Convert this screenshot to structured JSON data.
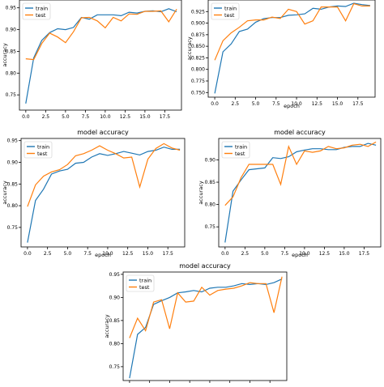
{
  "colors": {
    "train": "#1f77b4",
    "test": "#ff7f0e",
    "axis": "#000000",
    "background": "#ffffff"
  },
  "chart_data": [
    {
      "type": "line",
      "title": "",
      "xlabel": "",
      "ylabel": "accuracy",
      "xlim": [
        -0.8,
        19.6
      ],
      "ylim": [
        0.715,
        0.968
      ],
      "xticks": [
        0.0,
        2.5,
        5.0,
        7.5,
        10.0,
        12.5,
        15.0,
        17.5
      ],
      "xtick_labels": [
        "0.0",
        "2.5",
        "5.0",
        "7.5",
        "10.0",
        "12.5",
        "15.0",
        "17.5"
      ],
      "yticks": [
        0.75,
        0.8,
        0.85,
        0.9,
        0.95
      ],
      "ytick_labels": [
        "0.75",
        "0.80",
        "0.85",
        "0.90",
        "0.95"
      ],
      "legend": "top-left",
      "x": [
        0,
        1,
        2,
        3,
        4,
        5,
        6,
        7,
        8,
        9,
        10,
        11,
        12,
        13,
        14,
        15,
        16,
        17,
        18,
        19
      ],
      "series": [
        {
          "name": "train",
          "color": "#1f77b4",
          "values": [
            0.73,
            0.835,
            0.875,
            0.893,
            0.902,
            0.9,
            0.905,
            0.928,
            0.924,
            0.934,
            0.934,
            0.934,
            0.932,
            0.94,
            0.938,
            0.942,
            0.943,
            0.941,
            0.948,
            0.941
          ]
        },
        {
          "name": "test",
          "color": "#ff7f0e",
          "values": [
            0.833,
            0.831,
            0.868,
            0.892,
            0.883,
            0.87,
            0.895,
            0.927,
            0.928,
            0.92,
            0.904,
            0.928,
            0.92,
            0.936,
            0.935,
            0.942,
            0.942,
            0.943,
            0.918,
            0.947
          ]
        }
      ]
    },
    {
      "type": "line",
      "title": "",
      "xlabel": "epoch",
      "ylabel": "accuracy",
      "xlim": [
        -0.8,
        19.6
      ],
      "ylim": [
        0.74,
        0.95
      ],
      "xticks": [
        0.0,
        2.5,
        5.0,
        7.5,
        10.0,
        12.5,
        15.0,
        17.5
      ],
      "xtick_labels": [
        "0.0",
        "2.5",
        "5.0",
        "7.5",
        "10.0",
        "12.5",
        "15.0",
        "17.5"
      ],
      "yticks": [
        0.75,
        0.775,
        0.8,
        0.825,
        0.85,
        0.875,
        0.9,
        0.925
      ],
      "ytick_labels": [
        "0.750",
        "0.775",
        "0.800",
        "0.825",
        "0.850",
        "0.875",
        "0.900",
        "0.925"
      ],
      "legend": "top-left",
      "x": [
        0,
        1,
        2,
        3,
        4,
        5,
        6,
        7,
        8,
        9,
        10,
        11,
        12,
        13,
        14,
        15,
        16,
        17,
        18,
        19
      ],
      "series": [
        {
          "name": "train",
          "color": "#1f77b4",
          "values": [
            0.748,
            0.838,
            0.855,
            0.882,
            0.887,
            0.902,
            0.91,
            0.912,
            0.912,
            0.917,
            0.918,
            0.92,
            0.932,
            0.93,
            0.935,
            0.937,
            0.936,
            0.943,
            0.94,
            0.938
          ]
        },
        {
          "name": "test",
          "color": "#ff7f0e",
          "values": [
            0.82,
            0.862,
            0.879,
            0.891,
            0.905,
            0.907,
            0.907,
            0.913,
            0.91,
            0.93,
            0.925,
            0.898,
            0.905,
            0.935,
            0.935,
            0.935,
            0.905,
            0.942,
            0.937,
            0.937
          ]
        }
      ]
    },
    {
      "type": "line",
      "title": "model accuracy",
      "xlabel": "epoch",
      "ylabel": "accuracy",
      "xlim": [
        -0.8,
        19.6
      ],
      "ylim": [
        0.705,
        0.955
      ],
      "xticks": [
        0.0,
        2.5,
        5.0,
        7.5,
        10.0,
        12.5,
        15.0,
        17.5
      ],
      "xtick_labels": [
        "0.0",
        "2.5",
        "5.0",
        "7.5",
        "10.0",
        "12.5",
        "15.0",
        "17.5"
      ],
      "yticks": [
        0.75,
        0.8,
        0.85,
        0.9,
        0.95
      ],
      "ytick_labels": [
        "0.75",
        "0.80",
        "0.85",
        "0.90",
        "0.95"
      ],
      "legend": "top-left",
      "x": [
        0,
        1,
        2,
        3,
        4,
        5,
        6,
        7,
        8,
        9,
        10,
        11,
        12,
        13,
        14,
        15,
        16,
        17,
        18,
        19
      ],
      "series": [
        {
          "name": "train",
          "color": "#1f77b4",
          "values": [
            0.715,
            0.812,
            0.838,
            0.873,
            0.88,
            0.884,
            0.898,
            0.9,
            0.912,
            0.92,
            0.916,
            0.92,
            0.925,
            0.921,
            0.917,
            0.925,
            0.928,
            0.935,
            0.93,
            0.93
          ]
        },
        {
          "name": "test",
          "color": "#ff7f0e",
          "values": [
            0.798,
            0.848,
            0.868,
            0.878,
            0.883,
            0.895,
            0.915,
            0.92,
            0.928,
            0.938,
            0.928,
            0.92,
            0.91,
            0.912,
            0.843,
            0.907,
            0.932,
            0.943,
            0.933,
            0.928
          ]
        }
      ]
    },
    {
      "type": "line",
      "title": "model accuracy",
      "xlabel": "epoch",
      "ylabel": "accuracy",
      "xlim": [
        -0.8,
        19.6
      ],
      "ylim": [
        0.705,
        0.948
      ],
      "xticks": [
        0.0,
        2.5,
        5.0,
        7.5,
        10.0,
        12.5,
        15.0,
        17.5
      ],
      "xtick_labels": [
        "0.0",
        "2.5",
        "5.0",
        "7.5",
        "10.0",
        "12.5",
        "15.0",
        "17.5"
      ],
      "yticks": [
        0.75,
        0.8,
        0.85,
        0.9
      ],
      "ytick_labels": [
        "0.75",
        "0.80",
        "0.85",
        "0.90"
      ],
      "legend": "top-left",
      "x": [
        0,
        1,
        2,
        3,
        4,
        5,
        6,
        7,
        8,
        9,
        10,
        11,
        12,
        13,
        14,
        15,
        16,
        17,
        18,
        19
      ],
      "series": [
        {
          "name": "train",
          "color": "#1f77b4",
          "values": [
            0.715,
            0.83,
            0.855,
            0.878,
            0.88,
            0.882,
            0.905,
            0.903,
            0.907,
            0.918,
            0.922,
            0.925,
            0.925,
            0.923,
            0.923,
            0.928,
            0.93,
            0.93,
            0.937,
            0.933
          ]
        },
        {
          "name": "test",
          "color": "#ff7f0e",
          "values": [
            0.798,
            0.817,
            0.86,
            0.89,
            0.89,
            0.89,
            0.89,
            0.845,
            0.93,
            0.89,
            0.92,
            0.917,
            0.92,
            0.93,
            0.925,
            0.927,
            0.933,
            0.935,
            0.93,
            0.94
          ]
        }
      ]
    },
    {
      "type": "line",
      "title": "model accuracy",
      "xlabel": "",
      "ylabel": "accuracy",
      "xlim": [
        -0.8,
        19.6
      ],
      "ylim": [
        0.72,
        0.955
      ],
      "xticks": [
        0.0,
        2.5,
        5.0,
        7.5,
        10.0,
        12.5,
        15.0,
        17.5
      ],
      "xtick_labels": [
        "0.0",
        "2.5",
        "5.0",
        "7.5",
        "10.0",
        "12.5",
        "15.0",
        "17.5"
      ],
      "yticks": [
        0.75,
        0.8,
        0.85,
        0.9,
        0.95
      ],
      "ytick_labels": [
        "0.75",
        "0.80",
        "0.85",
        "0.90",
        "0.95"
      ],
      "legend": "top-left",
      "x": [
        0,
        1,
        2,
        3,
        4,
        5,
        6,
        7,
        8,
        9,
        10,
        11,
        12,
        13,
        14,
        15,
        16,
        17,
        18,
        19
      ],
      "series": [
        {
          "name": "train",
          "color": "#1f77b4",
          "values": [
            0.725,
            0.82,
            0.835,
            0.885,
            0.893,
            0.9,
            0.91,
            0.912,
            0.915,
            0.912,
            0.92,
            0.922,
            0.922,
            0.925,
            0.93,
            0.928,
            0.93,
            0.928,
            0.932,
            0.94
          ]
        },
        {
          "name": "test",
          "color": "#ff7f0e",
          "values": [
            0.812,
            0.855,
            0.828,
            0.89,
            0.895,
            0.832,
            0.91,
            0.89,
            0.892,
            0.922,
            0.905,
            0.915,
            0.918,
            0.92,
            0.925,
            0.932,
            0.93,
            0.93,
            0.867,
            0.945
          ]
        }
      ]
    }
  ]
}
